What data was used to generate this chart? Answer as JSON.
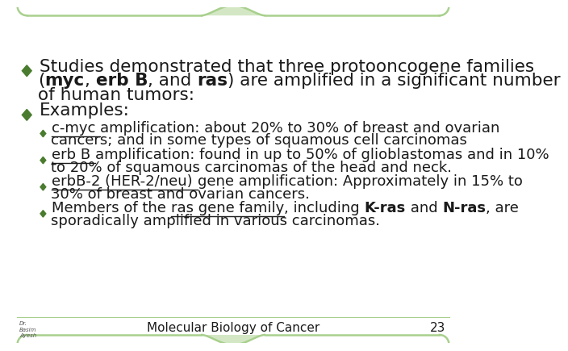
{
  "background_color": "#ffffff",
  "border_color": "#a8d08d",
  "slide_number": "23",
  "footer_text": "Molecular Biology of Cancer",
  "bullet_color": "#4a7c2f",
  "bullet1_line1": "Studies demonstrated that three protooncogene families",
  "bullet1_line2_parts": [
    {
      "text": "(",
      "bold": false,
      "underline": false
    },
    {
      "text": "myc",
      "bold": true,
      "underline": false
    },
    {
      "text": ", ",
      "bold": false,
      "underline": false
    },
    {
      "text": "erb B",
      "bold": true,
      "underline": false
    },
    {
      "text": ", and ",
      "bold": false,
      "underline": false
    },
    {
      "text": "ras",
      "bold": true,
      "underline": false
    },
    {
      "text": ") are amplified in a significant number",
      "bold": false,
      "underline": false
    }
  ],
  "bullet1_line3": "of human tumors:",
  "bullet2": "Examples:",
  "sub_bullets": [
    {
      "parts": [
        {
          "text": "c-myc ",
          "bold": false,
          "underline": true
        },
        {
          "text": "amplification: about 20% to 30% of breast and ovarian",
          "bold": false,
          "underline": false
        }
      ],
      "line2": "cancers; and in some types of squamous cell carcinomas"
    },
    {
      "parts": [
        {
          "text": "erb B ",
          "bold": false,
          "underline": true
        },
        {
          "text": "amplification: found in up to 50% of glioblastomas and in 10%",
          "bold": false,
          "underline": false
        }
      ],
      "line2": "to 20% of squamous carcinomas of the head and neck."
    },
    {
      "parts": [
        {
          "text": "erbB-2 (HER-2/neu) ",
          "bold": false,
          "underline": true
        },
        {
          "text": "gene amplification: Approximately in 15% to",
          "bold": false,
          "underline": false
        }
      ],
      "line2": "30% of breast and ovarian cancers."
    },
    {
      "parts": [
        {
          "text": "Members of the ",
          "bold": false,
          "underline": false
        },
        {
          "text": "ras gene family",
          "bold": false,
          "underline": true
        },
        {
          "text": ", including ",
          "bold": false,
          "underline": false
        },
        {
          "text": "K-ras",
          "bold": true,
          "underline": false
        },
        {
          "text": " and ",
          "bold": false,
          "underline": false
        },
        {
          "text": "N-ras",
          "bold": true,
          "underline": false
        },
        {
          "text": ", are",
          "bold": false,
          "underline": false
        }
      ],
      "line2": "sporadically amplified in various carcinomas."
    }
  ],
  "main_fontsize": 15.5,
  "sub_fontsize": 13.0,
  "footer_fontsize": 11,
  "text_color": "#1a1a1a"
}
